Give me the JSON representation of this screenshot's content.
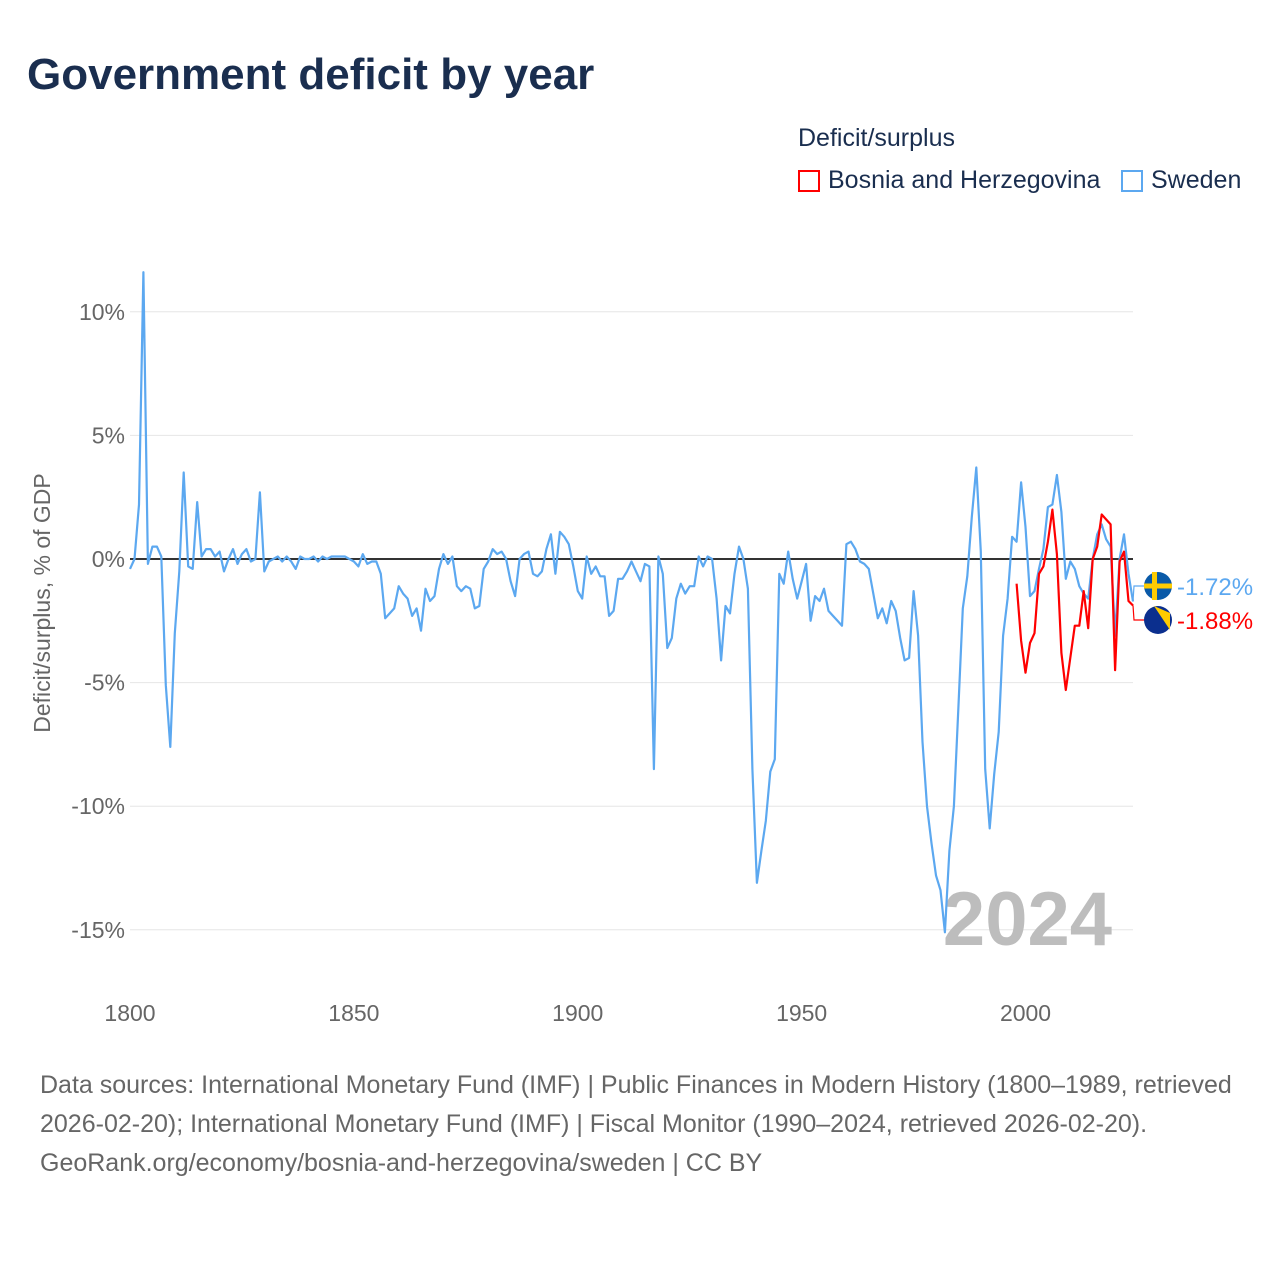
{
  "title": "Government deficit by year",
  "legend": {
    "title": "Deficit/surplus",
    "items": [
      {
        "name": "Bosnia and Herzegovina",
        "color": "#ff0000"
      },
      {
        "name": "Sweden",
        "color": "#5ca8f0"
      }
    ]
  },
  "footer": {
    "sources": "Data sources: International Monetary Fund (IMF) | Public Finances in Modern History (1800–1989, retrieved 2026-02-20); International Monetary Fund (IMF) | Fiscal Monitor (1990–2024, retrieved 2026-02-20).",
    "credit": "GeoRank.org/economy/bosnia-and-herzegovina/sweden | CC BY"
  },
  "chart_data": {
    "type": "line",
    "title": "Government deficit by year",
    "ylabel": "Deficit/surplus, % of GDP",
    "xlabel": "",
    "xlim": [
      1800,
      2024
    ],
    "ylim": [
      -16.5,
      12
    ],
    "x_ticks": [
      "1800",
      "1850",
      "1900",
      "1950",
      "2000"
    ],
    "x_tick_values": [
      1800,
      1850,
      1900,
      1950,
      2000
    ],
    "y_ticks": [
      "10%",
      "5%",
      "0%",
      "-5%",
      "-10%",
      "-15%"
    ],
    "y_tick_values": [
      10,
      5,
      0,
      -5,
      -10,
      -15
    ],
    "year_watermark": "2024",
    "series": [
      {
        "name": "Sweden",
        "color": "#5ca8f0",
        "start_year": 1800,
        "end_label": "-1.72%",
        "values": [
          -0.4,
          0,
          2.2,
          11.6,
          -0.2,
          0.5,
          0.5,
          0.1,
          -5.1,
          -7.6,
          -3.0,
          -0.5,
          3.5,
          -0.3,
          -0.4,
          2.3,
          0.1,
          0.4,
          0.4,
          0.1,
          0.3,
          -0.5,
          0.0,
          0.4,
          -0.2,
          0.2,
          0.4,
          -0.1,
          0.0,
          2.7,
          -0.5,
          -0.1,
          0.0,
          0.1,
          -0.1,
          0.1,
          -0.1,
          -0.4,
          0.1,
          0.0,
          0.0,
          0.1,
          -0.1,
          0.1,
          0.0,
          0.1,
          0.1,
          0.1,
          0.1,
          0.0,
          -0.1,
          -0.3,
          0.2,
          -0.2,
          -0.1,
          -0.1,
          -0.6,
          -2.4,
          -2.2,
          -2.0,
          -1.1,
          -1.4,
          -1.6,
          -2.3,
          -2.0,
          -2.9,
          -1.2,
          -1.7,
          -1.5,
          -0.4,
          0.2,
          -0.2,
          0.1,
          -1.1,
          -1.3,
          -1.1,
          -1.2,
          -2.0,
          -1.9,
          -0.4,
          -0.1,
          0.4,
          0.2,
          0.3,
          0.0,
          -0.9,
          -1.5,
          0.0,
          0.2,
          0.3,
          -0.6,
          -0.7,
          -0.5,
          0.4,
          1.0,
          -0.6,
          1.1,
          0.9,
          0.6,
          -0.3,
          -1.3,
          -1.6,
          0.1,
          -0.6,
          -0.3,
          -0.7,
          -0.7,
          -2.3,
          -2.1,
          -0.8,
          -0.8,
          -0.5,
          -0.1,
          -0.5,
          -0.9,
          -0.2,
          -0.3,
          -8.5,
          0.1,
          -0.6,
          -3.6,
          -3.2,
          -1.6,
          -1.0,
          -1.4,
          -1.1,
          -1.1,
          0.1,
          -0.3,
          0.1,
          0.0,
          -1.6,
          -4.1,
          -1.9,
          -2.2,
          -0.6,
          0.5,
          0.0,
          -1.2,
          -8.5,
          -13.1,
          -11.8,
          -10.6,
          -8.6,
          -8.1,
          -0.6,
          -1.0,
          0.3,
          -0.8,
          -1.6,
          -0.9,
          -0.2,
          -2.5,
          -1.5,
          -1.7,
          -1.2,
          -2.1,
          -2.3,
          -2.5,
          -2.7,
          0.6,
          0.7,
          0.4,
          -0.1,
          -0.2,
          -0.4,
          -1.4,
          -2.4,
          -2.0,
          -2.6,
          -1.7,
          -2.1,
          -3.2,
          -4.1,
          -4.0,
          -1.3,
          -3.1,
          -7.4,
          -10.0,
          -11.5,
          -12.8,
          -13.4,
          -15.1,
          -11.8,
          -10.0,
          -6.0,
          -2.0,
          -0.7,
          1.7,
          3.7,
          0.3,
          -8.5,
          -10.9,
          -8.7,
          -7.0,
          -3.1,
          -1.6,
          0.9,
          0.7,
          3.1,
          1.3,
          -1.5,
          -1.3,
          -0.4,
          0.4,
          2.1,
          2.2,
          3.4,
          1.9,
          -0.8,
          -0.1,
          -0.4,
          -1.1,
          -1.4,
          -1.6,
          0.0,
          1.0,
          1.4,
          0.8,
          0.5,
          -3.1,
          0.0,
          1.0,
          -0.6,
          -1.72
        ]
      },
      {
        "name": "Bosnia and Herzegovina",
        "color": "#ff0000",
        "start_year": 1998,
        "end_label": "-1.88%",
        "values": [
          -1.0,
          -3.3,
          -4.6,
          -3.4,
          -3.0,
          -0.6,
          -0.3,
          0.7,
          2.0,
          0.2,
          -3.8,
          -5.3,
          -4.0,
          -2.7,
          -2.7,
          -1.3,
          -2.8,
          0.0,
          0.5,
          1.8,
          1.6,
          1.4,
          -4.5,
          -0.1,
          0.3,
          -1.7,
          -1.88
        ]
      }
    ]
  }
}
